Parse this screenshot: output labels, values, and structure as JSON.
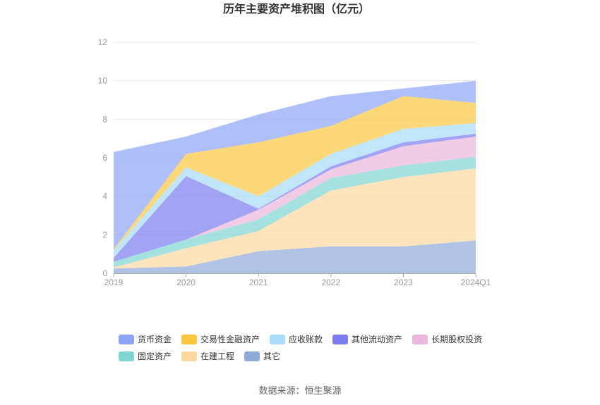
{
  "source": "数据来源：恒生聚源",
  "chart_data": {
    "type": "area",
    "stacked": true,
    "title": "历年主要资产堆积图（亿元）",
    "xlabel": "",
    "ylabel": "",
    "categories": [
      "2019",
      "2020",
      "2021",
      "2022",
      "2023",
      "2024Q1"
    ],
    "ylim": [
      0,
      12
    ],
    "yticks": [
      0,
      2,
      4,
      6,
      8,
      10,
      12
    ],
    "grid": true,
    "legend_position": "bottom",
    "series": [
      {
        "name": "货币资金",
        "color": "#8ba4f6",
        "values": [
          5.05,
          0.9,
          1.45,
          1.55,
          0.4,
          1.15
        ]
      },
      {
        "name": "交易性金融资产",
        "color": "#fcc73f",
        "values": [
          0.05,
          0.7,
          2.8,
          1.45,
          1.7,
          1.05
        ]
      },
      {
        "name": "应收账款",
        "color": "#a8dcf7",
        "values": [
          0.4,
          0.45,
          0.65,
          0.65,
          0.7,
          0.55
        ]
      },
      {
        "name": "其他流动资产",
        "color": "#7b7cf0",
        "values": [
          0.2,
          3.3,
          0.05,
          0.15,
          0.2,
          0.15
        ]
      },
      {
        "name": "长期股权投资",
        "color": "#ebb7dc",
        "values": [
          0.0,
          0.0,
          0.5,
          0.45,
          1.0,
          1.05
        ]
      },
      {
        "name": "固定资产",
        "color": "#7fd5d1",
        "values": [
          0.3,
          0.45,
          0.6,
          0.65,
          0.6,
          0.6
        ]
      },
      {
        "name": "在建工程",
        "color": "#fdd89f",
        "values": [
          0.05,
          0.95,
          1.05,
          2.9,
          3.6,
          3.75
        ]
      },
      {
        "name": "其它",
        "color": "#8fa9d8",
        "values": [
          0.25,
          0.35,
          1.15,
          1.4,
          1.4,
          1.7
        ]
      }
    ]
  }
}
